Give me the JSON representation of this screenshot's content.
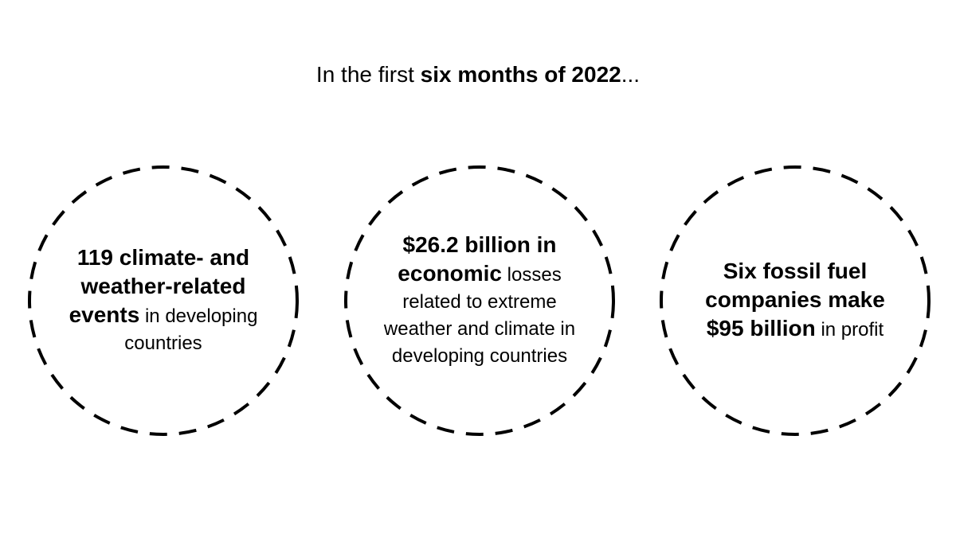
{
  "heading": {
    "prefix": "In the first ",
    "bold": "six months of 2022",
    "suffix": "..."
  },
  "circles": [
    {
      "bold": "119 climate- and weather-related events",
      "regular": "in developing countries"
    },
    {
      "bold": "$26.2 billion in economic",
      "regular": "losses related to extreme weather and climate in developing countries"
    },
    {
      "bold": "Six fossil fuel companies make $95 billion",
      "regular": "in profit"
    }
  ]
}
